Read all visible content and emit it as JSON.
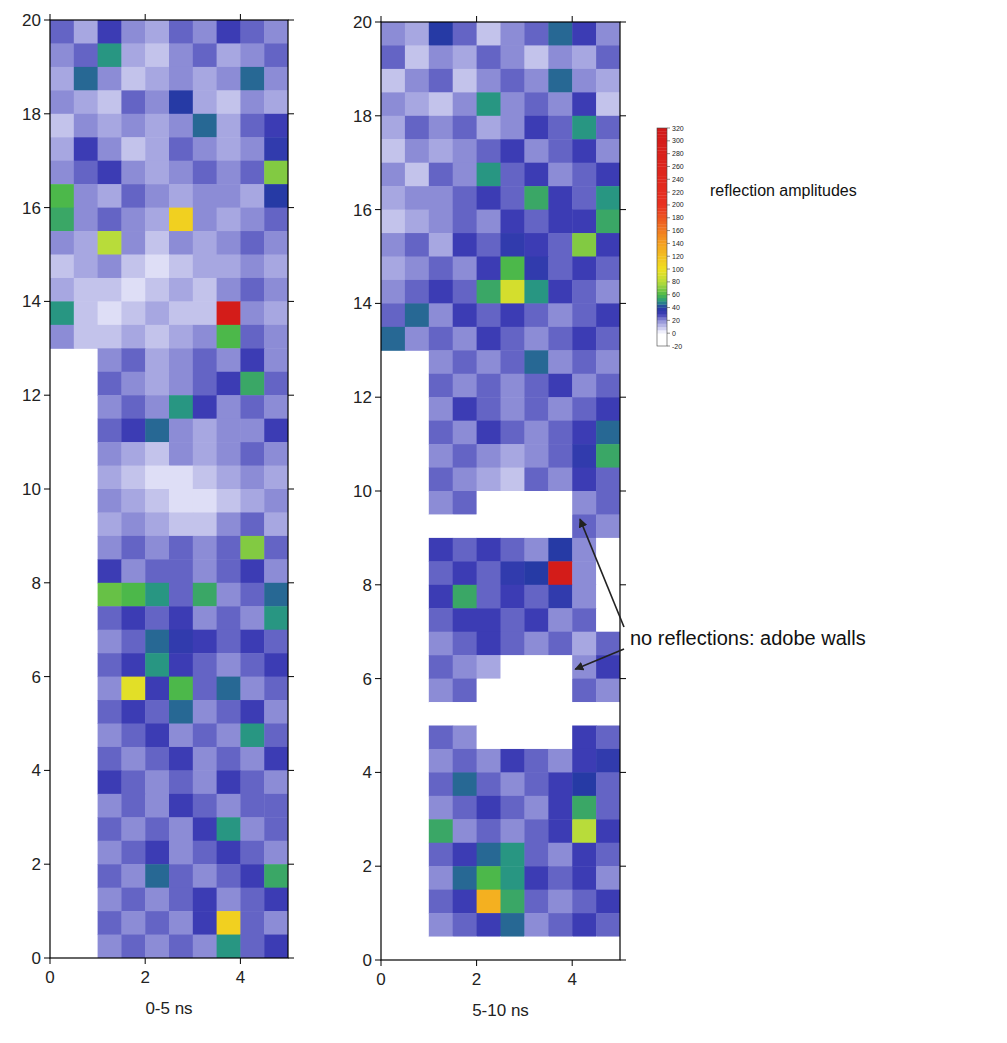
{
  "chart_data": [
    {
      "type": "heatmap",
      "title": "0-5 ns",
      "xlim": [
        0,
        5
      ],
      "ylim": [
        0,
        20
      ],
      "xticks": [
        0,
        2,
        4
      ],
      "yticks": [
        0,
        2,
        4,
        6,
        8,
        10,
        12,
        14,
        16,
        18,
        20
      ],
      "x": [
        0.25,
        0.75,
        1.25,
        1.75,
        2.25,
        2.75,
        3.25,
        3.75,
        4.25,
        4.75
      ],
      "y": [
        19.75,
        19.25,
        18.75,
        18.25,
        17.75,
        17.25,
        16.75,
        16.25,
        15.75,
        15.25,
        14.75,
        14.25,
        13.75,
        13.25,
        12.75,
        12.25,
        11.75,
        11.25,
        10.75,
        10.25,
        9.75,
        9.25,
        8.75,
        8.25,
        7.75,
        7.25,
        6.75,
        6.25,
        5.75,
        5.25,
        4.75,
        4.25,
        3.75,
        3.25,
        2.75,
        2.25,
        1.75,
        1.25,
        0.75,
        0.25
      ],
      "cells": [
        [
          25,
          15,
          30,
          20,
          15,
          25,
          20,
          30,
          25,
          20
        ],
        [
          20,
          25,
          50,
          15,
          10,
          20,
          25,
          15,
          20,
          25
        ],
        [
          15,
          45,
          20,
          10,
          15,
          20,
          15,
          20,
          45,
          20
        ],
        [
          20,
          15,
          10,
          25,
          20,
          40,
          15,
          10,
          20,
          15
        ],
        [
          10,
          20,
          15,
          20,
          15,
          20,
          45,
          15,
          25,
          30
        ],
        [
          15,
          30,
          20,
          10,
          15,
          25,
          20,
          15,
          20,
          35
        ],
        [
          20,
          25,
          30,
          20,
          15,
          20,
          25,
          20,
          25,
          70
        ],
        [
          60,
          20,
          15,
          25,
          20,
          15,
          20,
          20,
          15,
          40
        ],
        [
          55,
          20,
          25,
          20,
          15,
          110,
          20,
          15,
          20,
          25
        ],
        [
          20,
          15,
          80,
          20,
          10,
          20,
          15,
          20,
          25,
          20
        ],
        [
          10,
          15,
          20,
          10,
          5,
          10,
          15,
          15,
          20,
          15
        ],
        [
          15,
          10,
          10,
          5,
          10,
          15,
          10,
          20,
          25,
          20
        ],
        [
          50,
          10,
          5,
          10,
          15,
          10,
          10,
          300,
          20,
          15
        ],
        [
          20,
          10,
          10,
          15,
          10,
          15,
          20,
          60,
          25,
          20
        ],
        [
          null,
          null,
          20,
          25,
          15,
          20,
          25,
          20,
          30,
          20
        ],
        [
          null,
          null,
          25,
          20,
          15,
          20,
          25,
          30,
          55,
          25
        ],
        [
          null,
          null,
          20,
          25,
          20,
          50,
          30,
          20,
          25,
          20
        ],
        [
          null,
          null,
          25,
          30,
          45,
          20,
          15,
          20,
          20,
          30
        ],
        [
          null,
          null,
          20,
          15,
          10,
          20,
          15,
          20,
          25,
          20
        ],
        [
          null,
          null,
          15,
          10,
          5,
          5,
          10,
          15,
          20,
          15
        ],
        [
          null,
          null,
          20,
          15,
          10,
          5,
          5,
          10,
          15,
          20
        ],
        [
          null,
          null,
          15,
          20,
          15,
          10,
          10,
          20,
          25,
          15
        ],
        [
          null,
          null,
          20,
          25,
          20,
          25,
          20,
          25,
          70,
          25
        ],
        [
          null,
          null,
          30,
          20,
          25,
          25,
          20,
          25,
          30,
          20
        ],
        [
          null,
          null,
          65,
          60,
          50,
          25,
          55,
          20,
          25,
          45
        ],
        [
          null,
          null,
          25,
          30,
          25,
          30,
          20,
          25,
          20,
          50
        ],
        [
          null,
          null,
          20,
          25,
          45,
          35,
          30,
          25,
          30,
          25
        ],
        [
          null,
          null,
          25,
          30,
          50,
          30,
          25,
          20,
          25,
          30
        ],
        [
          null,
          null,
          20,
          95,
          30,
          60,
          25,
          45,
          20,
          25
        ],
        [
          null,
          null,
          25,
          30,
          25,
          45,
          20,
          25,
          30,
          20
        ],
        [
          null,
          null,
          20,
          25,
          30,
          20,
          25,
          20,
          50,
          25
        ],
        [
          null,
          null,
          25,
          20,
          25,
          30,
          20,
          25,
          20,
          30
        ],
        [
          null,
          null,
          30,
          25,
          20,
          25,
          20,
          30,
          25,
          20
        ],
        [
          null,
          null,
          20,
          25,
          20,
          30,
          25,
          20,
          25,
          25
        ],
        [
          null,
          null,
          25,
          20,
          25,
          20,
          30,
          50,
          20,
          25
        ],
        [
          null,
          null,
          20,
          25,
          30,
          20,
          25,
          30,
          25,
          20
        ],
        [
          null,
          null,
          25,
          20,
          45,
          25,
          20,
          25,
          30,
          55
        ],
        [
          null,
          null,
          20,
          25,
          20,
          25,
          30,
          20,
          25,
          30
        ],
        [
          null,
          null,
          25,
          20,
          25,
          20,
          30,
          110,
          25,
          20
        ],
        [
          null,
          null,
          20,
          25,
          20,
          25,
          20,
          50,
          25,
          30
        ]
      ]
    },
    {
      "type": "heatmap",
      "title": "5-10 ns",
      "xlim": [
        0,
        5
      ],
      "ylim": [
        0,
        20
      ],
      "xticks": [
        0,
        2,
        4
      ],
      "yticks": [
        0,
        2,
        4,
        6,
        8,
        10,
        12,
        14,
        16,
        18,
        20
      ],
      "x": [
        0.25,
        0.75,
        1.25,
        1.75,
        2.25,
        2.75,
        3.25,
        3.75,
        4.25,
        4.75
      ],
      "y": [
        19.75,
        19.25,
        18.75,
        18.25,
        17.75,
        17.25,
        16.75,
        16.25,
        15.75,
        15.25,
        14.75,
        14.25,
        13.75,
        13.25,
        12.75,
        12.25,
        11.75,
        11.25,
        10.75,
        10.25,
        9.75,
        9.25,
        8.75,
        8.25,
        7.75,
        7.25,
        6.75,
        6.25,
        5.75,
        5.25,
        4.75,
        4.25,
        3.75,
        3.25,
        2.75,
        2.25,
        1.75,
        1.25,
        0.75,
        0.25
      ],
      "cells": [
        [
          20,
          15,
          40,
          25,
          10,
          20,
          25,
          45,
          30,
          20
        ],
        [
          25,
          10,
          20,
          15,
          25,
          20,
          10,
          20,
          15,
          25
        ],
        [
          10,
          20,
          25,
          10,
          20,
          25,
          20,
          45,
          20,
          15
        ],
        [
          20,
          15,
          10,
          20,
          50,
          20,
          25,
          20,
          30,
          10
        ],
        [
          15,
          25,
          20,
          25,
          15,
          20,
          30,
          25,
          50,
          25
        ],
        [
          10,
          20,
          15,
          20,
          25,
          30,
          20,
          25,
          30,
          20
        ],
        [
          20,
          10,
          25,
          20,
          50,
          25,
          30,
          20,
          25,
          30
        ],
        [
          15,
          20,
          20,
          25,
          30,
          25,
          55,
          30,
          25,
          50
        ],
        [
          10,
          15,
          20,
          25,
          20,
          30,
          25,
          30,
          30,
          55
        ],
        [
          20,
          25,
          15,
          30,
          25,
          35,
          30,
          25,
          70,
          30
        ],
        [
          15,
          20,
          25,
          20,
          30,
          60,
          35,
          25,
          30,
          25
        ],
        [
          20,
          25,
          30,
          25,
          55,
          90,
          50,
          30,
          25,
          20
        ],
        [
          25,
          45,
          20,
          30,
          25,
          30,
          25,
          20,
          25,
          30
        ],
        [
          45,
          20,
          25,
          20,
          30,
          25,
          20,
          25,
          30,
          25
        ],
        [
          null,
          null,
          20,
          25,
          20,
          25,
          45,
          20,
          25,
          20
        ],
        [
          null,
          null,
          25,
          20,
          25,
          20,
          25,
          30,
          20,
          25
        ],
        [
          null,
          null,
          20,
          30,
          25,
          20,
          25,
          20,
          25,
          30
        ],
        [
          null,
          null,
          25,
          20,
          30,
          25,
          20,
          25,
          30,
          45
        ],
        [
          null,
          null,
          20,
          25,
          20,
          15,
          20,
          25,
          35,
          55
        ],
        [
          null,
          null,
          25,
          20,
          15,
          10,
          25,
          20,
          30,
          25
        ],
        [
          null,
          null,
          20,
          25,
          -10,
          -10,
          -10,
          -15,
          20,
          25
        ],
        [
          null,
          null,
          -5,
          0,
          -10,
          -15,
          -10,
          -15,
          25,
          20
        ],
        [
          null,
          null,
          30,
          25,
          30,
          25,
          20,
          40,
          20,
          -5
        ],
        [
          null,
          null,
          25,
          30,
          25,
          35,
          40,
          300,
          20,
          -5
        ],
        [
          null,
          null,
          30,
          55,
          25,
          30,
          25,
          35,
          20,
          -10
        ],
        [
          null,
          null,
          25,
          30,
          30,
          25,
          30,
          20,
          25,
          -5
        ],
        [
          null,
          null,
          20,
          25,
          30,
          25,
          20,
          25,
          15,
          25
        ],
        [
          null,
          null,
          25,
          20,
          15,
          -10,
          -10,
          -15,
          20,
          30
        ],
        [
          null,
          null,
          20,
          25,
          -5,
          -15,
          -10,
          -5,
          25,
          20
        ],
        [
          null,
          null,
          -10,
          -5,
          -10,
          -15,
          -10,
          -5,
          -5,
          -10
        ],
        [
          null,
          null,
          25,
          20,
          -10,
          -15,
          -10,
          -5,
          30,
          25
        ],
        [
          null,
          null,
          20,
          25,
          20,
          30,
          25,
          20,
          30,
          35
        ],
        [
          null,
          null,
          25,
          45,
          25,
          20,
          25,
          30,
          40,
          25
        ],
        [
          null,
          null,
          20,
          25,
          30,
          25,
          20,
          30,
          55,
          25
        ],
        [
          null,
          null,
          55,
          20,
          25,
          20,
          25,
          30,
          80,
          30
        ],
        [
          null,
          null,
          25,
          30,
          45,
          50,
          25,
          20,
          30,
          25
        ],
        [
          null,
          null,
          20,
          45,
          60,
          50,
          30,
          25,
          30,
          20
        ],
        [
          null,
          null,
          25,
          30,
          130,
          55,
          25,
          20,
          25,
          30
        ],
        [
          null,
          null,
          20,
          25,
          30,
          45,
          20,
          25,
          30,
          25
        ],
        [
          null,
          null,
          -10,
          -5,
          -10,
          -5,
          -10,
          -5,
          -10,
          -5
        ]
      ],
      "color_bar": {
        "label": "reflection amplitudes",
        "range": [
          -20,
          320
        ],
        "ticks": [
          -20,
          0,
          20,
          40,
          60,
          80,
          100,
          120,
          140,
          160,
          180,
          200,
          220,
          240,
          260,
          280,
          300,
          320
        ]
      },
      "annotation": {
        "text": "no reflections: adobe walls",
        "x": [
          4.1,
          4.0
        ],
        "y": [
          9.4,
          6.2
        ]
      }
    }
  ]
}
